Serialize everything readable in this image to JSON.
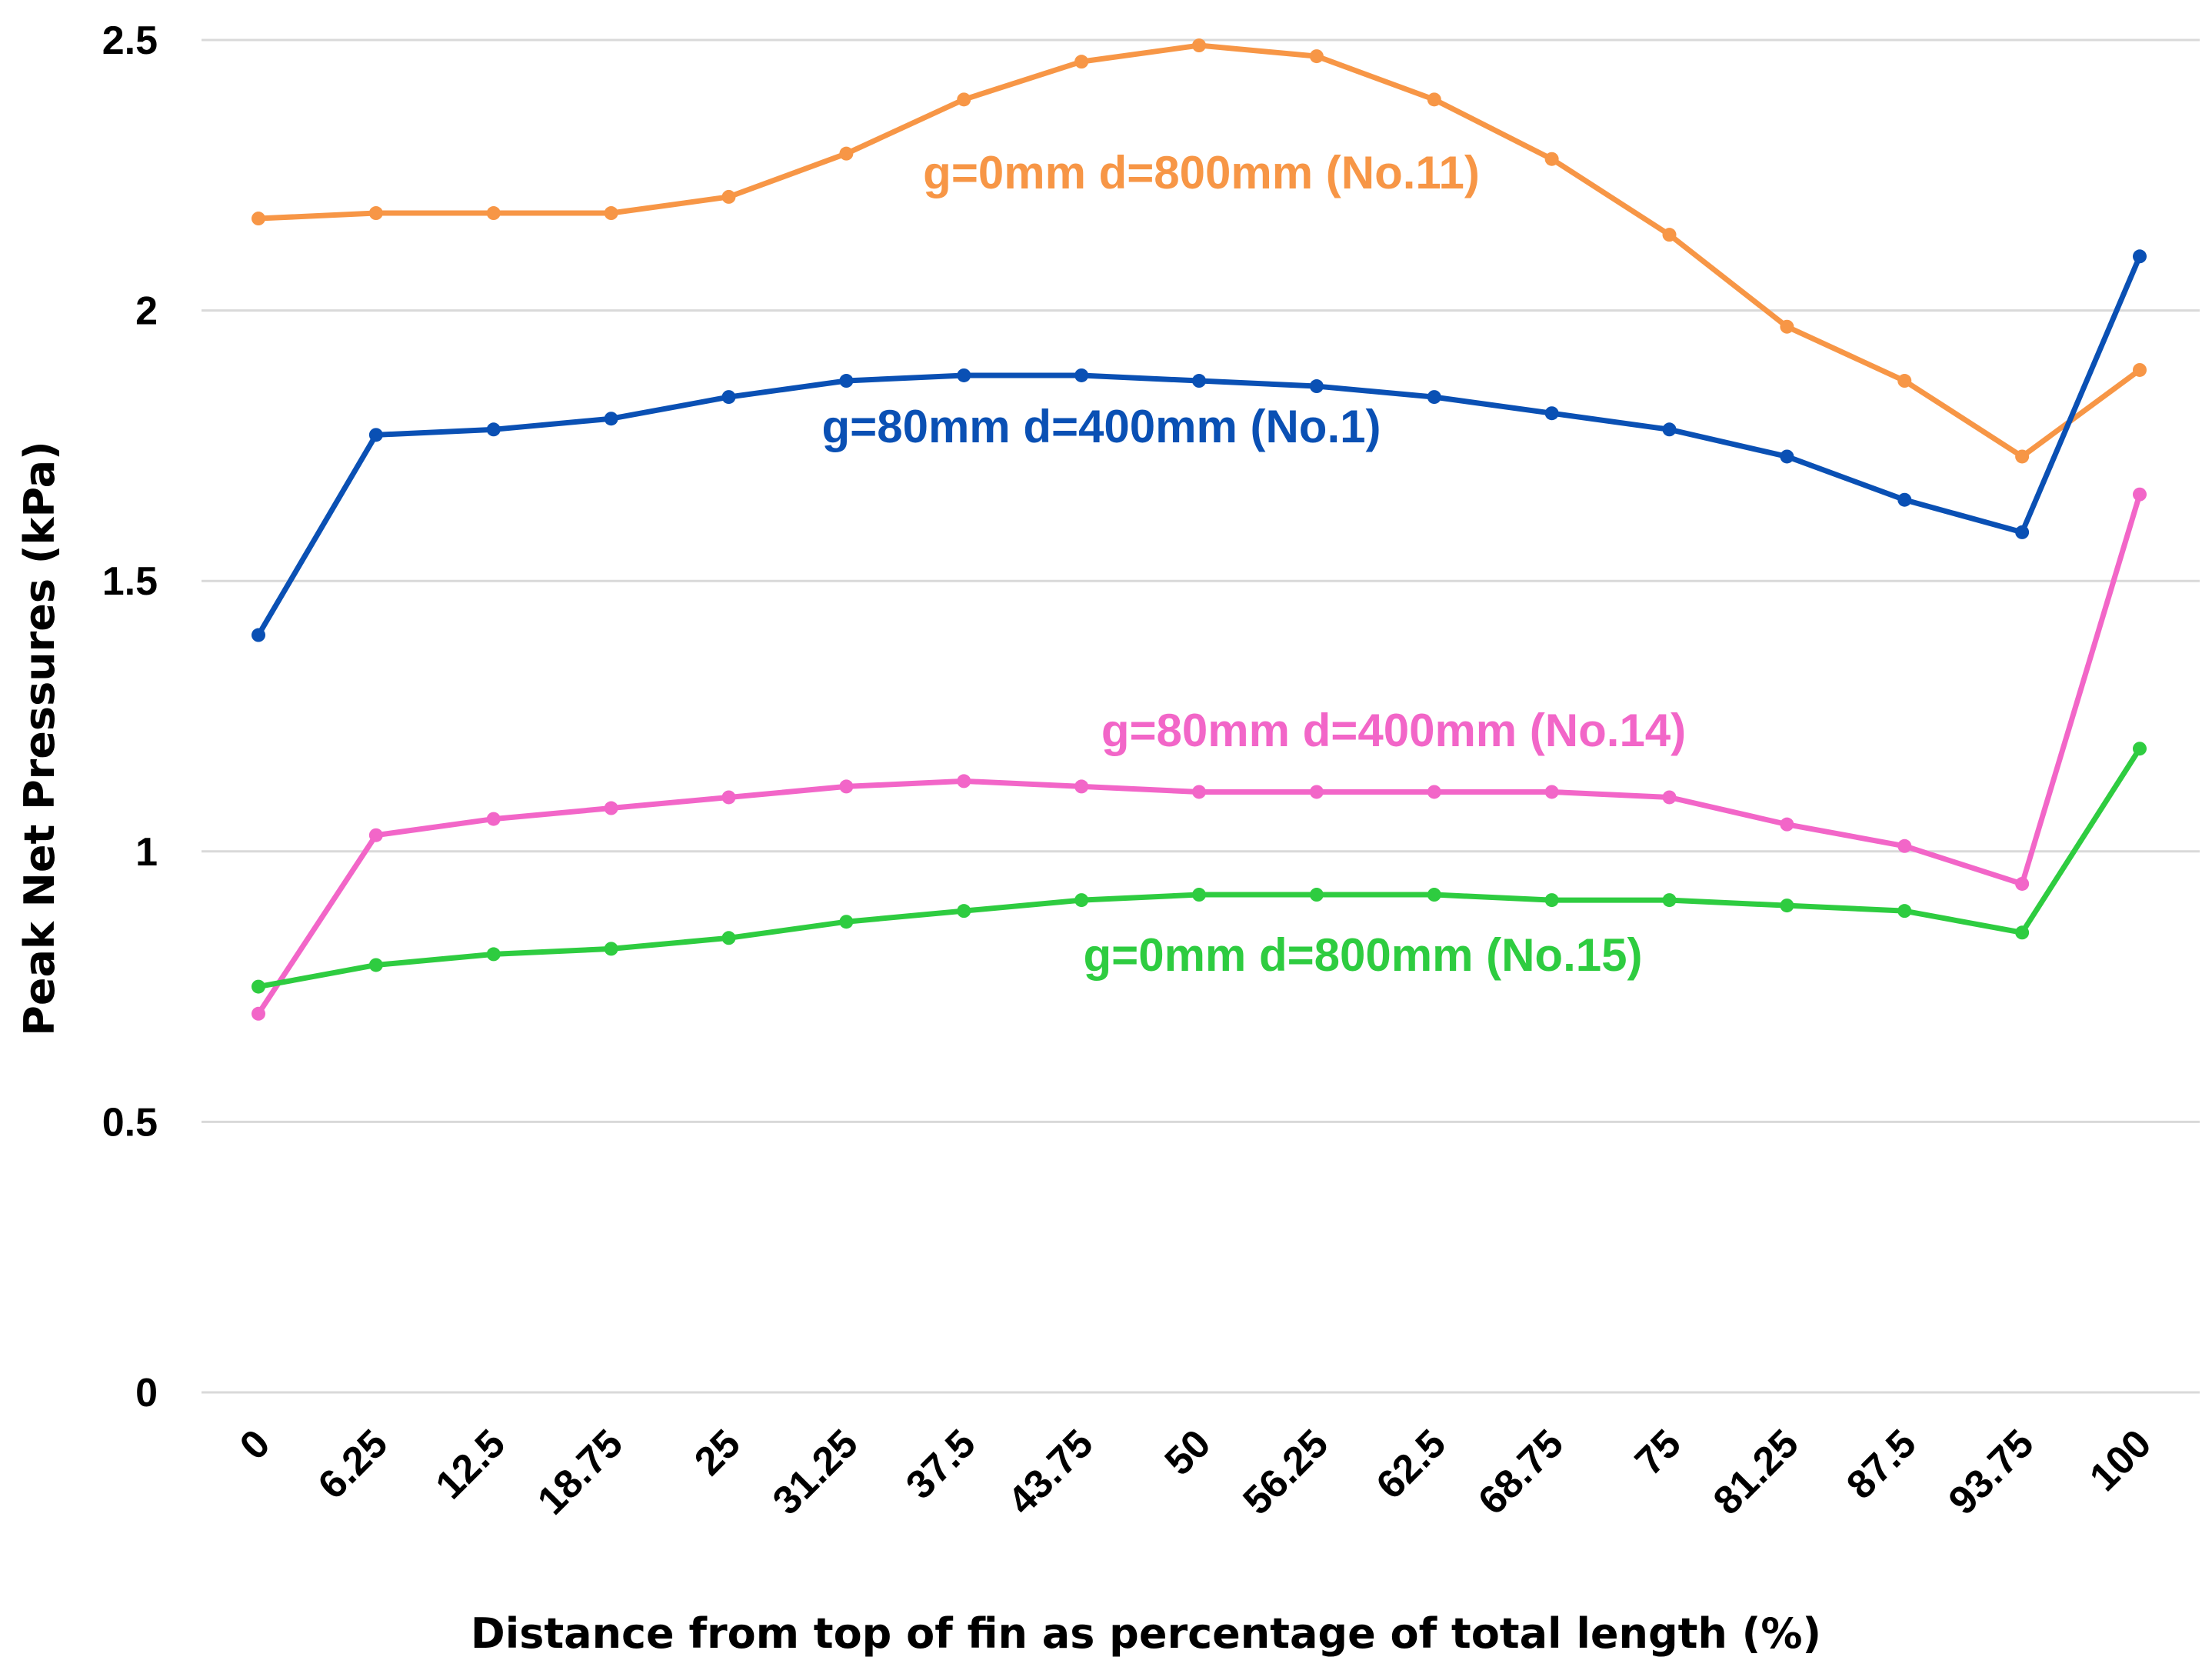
{
  "chart_data": {
    "type": "line",
    "title": "",
    "xlabel": "Distance from top of fin as percentage of total length (%)",
    "ylabel": "Peak Net Pressures (kPa)",
    "ylim": [
      0,
      2.5
    ],
    "yticks": [
      "0",
      "0.5",
      "1",
      "1.5",
      "2",
      "2.5"
    ],
    "categories": [
      "0",
      "6.25",
      "12.5",
      "18.75",
      "25",
      "31.25",
      "37.5",
      "43.75",
      "50",
      "56.25",
      "62.5",
      "68.75",
      "75",
      "81.25",
      "87.5",
      "93.75",
      "100"
    ],
    "grid": true,
    "series": [
      {
        "name": "g=0mm d=800mm (No.11)",
        "color": "#f79646",
        "values": [
          2.17,
          2.18,
          2.18,
          2.18,
          2.21,
          2.29,
          2.39,
          2.46,
          2.49,
          2.47,
          2.39,
          2.28,
          2.14,
          1.97,
          1.87,
          1.73,
          1.89
        ]
      },
      {
        "name": "g=80mm d=400mm (No.1)",
        "color": "#0a50b4",
        "values": [
          1.4,
          1.77,
          1.78,
          1.8,
          1.84,
          1.87,
          1.88,
          1.88,
          1.87,
          1.86,
          1.84,
          1.81,
          1.78,
          1.73,
          1.65,
          1.59,
          2.1
        ]
      },
      {
        "name": "g=80mm d=400mm (No.14)",
        "color": "#f266c8",
        "values": [
          0.7,
          1.03,
          1.06,
          1.08,
          1.1,
          1.12,
          1.13,
          1.12,
          1.11,
          1.11,
          1.11,
          1.11,
          1.1,
          1.05,
          1.01,
          0.94,
          1.66
        ]
      },
      {
        "name": "g=0mm d=800mm (No.15)",
        "color": "#2ecc40",
        "values": [
          0.75,
          0.79,
          0.81,
          0.82,
          0.84,
          0.87,
          0.89,
          0.91,
          0.92,
          0.92,
          0.92,
          0.91,
          0.91,
          0.9,
          0.89,
          0.85,
          1.19
        ]
      }
    ]
  }
}
